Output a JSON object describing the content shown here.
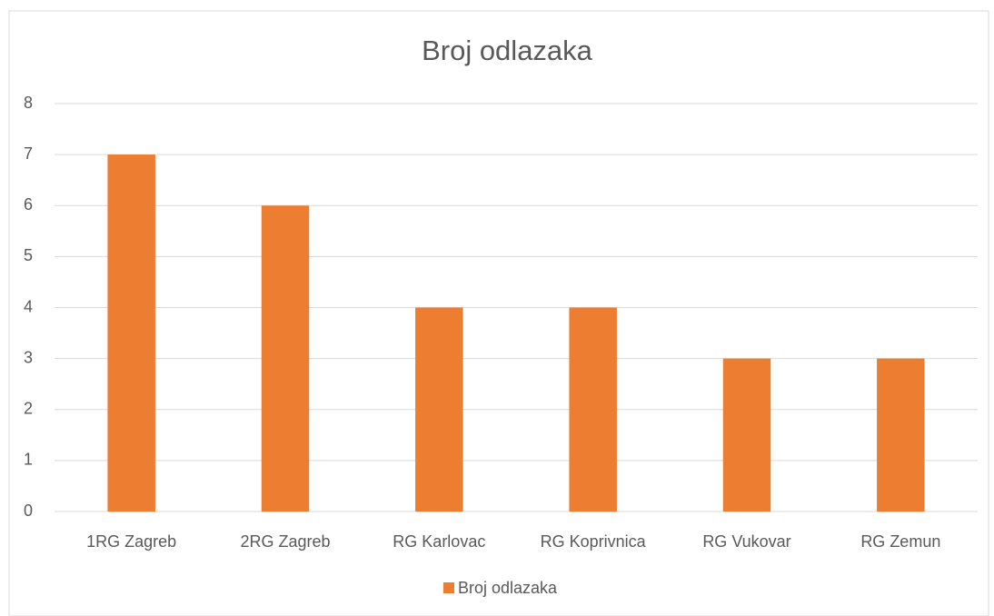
{
  "chart_data": {
    "type": "bar",
    "title": "Broj odlazaka",
    "categories": [
      "1RG Zagreb",
      "2RG Zagreb",
      "RG Karlovac",
      "RG Koprivnica",
      "RG Vukovar",
      "RG Zemun"
    ],
    "series": [
      {
        "name": "Broj odlazaka",
        "color": "#ed7d31",
        "values": [
          7,
          6,
          4,
          4,
          3,
          3
        ]
      }
    ],
    "ylim": [
      0,
      8
    ],
    "yticks": [
      0,
      1,
      2,
      3,
      4,
      5,
      6,
      7,
      8
    ],
    "grid": true,
    "legend": "bottom"
  }
}
